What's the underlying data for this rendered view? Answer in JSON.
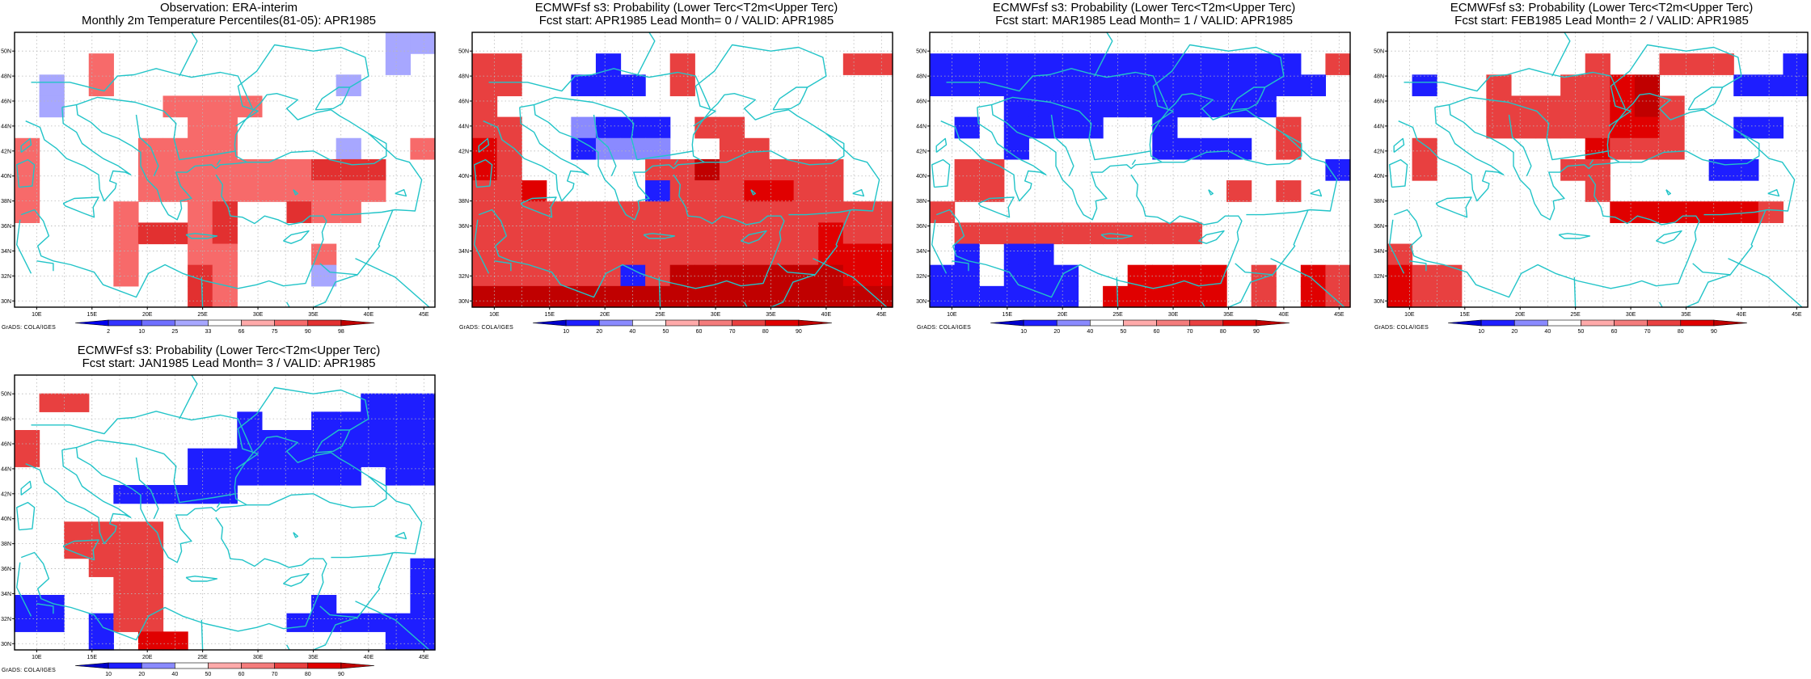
{
  "credit_text": "GrADS: COLA/IGES",
  "colors": {
    "frame": "#000000",
    "coast": "#22c4c8",
    "grid": "#b8b8b8"
  },
  "lat_labels": [
    "50N",
    "48N",
    "46N",
    "44N",
    "42N",
    "40N",
    "38N",
    "36N",
    "34N",
    "32N",
    "30N"
  ],
  "lon_labels": [
    "10E",
    "15E",
    "20E",
    "25E",
    "30E",
    "35E",
    "40E",
    "45E"
  ],
  "panels": [
    {
      "title_line1": "Observation: ERA-interim",
      "title_line2": "Monthly 2m Temperature Percentiles(81-05): APR1985",
      "legend": {
        "labels": [
          "2",
          "10",
          "25",
          "33",
          "66",
          "75",
          "90",
          "98"
        ],
        "colors": [
          "#0000ee",
          "#3333ff",
          "#6f6fff",
          "#a7a7ff",
          "#ffffff",
          "#ffaaaa",
          "#f76a6a",
          "#e23030",
          "#c00000"
        ]
      },
      "cells": [
        [
          0,
          0,
          0,
          0,
          0,
          0,
          0,
          0,
          0,
          0,
          0,
          0,
          0,
          0,
          0,
          -1,
          -1
        ],
        [
          0,
          0,
          0,
          2,
          0,
          0,
          0,
          0,
          0,
          0,
          0,
          0,
          0,
          0,
          0,
          -1,
          0
        ],
        [
          0,
          -1,
          0,
          2,
          0,
          0,
          0,
          0,
          0,
          0,
          0,
          0,
          0,
          -1,
          0,
          0,
          0
        ],
        [
          0,
          -1,
          0,
          0,
          0,
          0,
          2,
          2,
          2,
          2,
          0,
          0,
          0,
          0,
          0,
          0,
          0
        ],
        [
          0,
          0,
          0,
          0,
          0,
          0,
          0,
          2,
          2,
          0,
          0,
          0,
          0,
          0,
          0,
          0,
          0
        ],
        [
          2,
          0,
          0,
          0,
          0,
          2,
          2,
          2,
          2,
          0,
          0,
          0,
          0,
          -1,
          0,
          0,
          2
        ],
        [
          2,
          0,
          0,
          0,
          0,
          2,
          2,
          2,
          2,
          2,
          2,
          2,
          3,
          3,
          3,
          0,
          0
        ],
        [
          2,
          0,
          0,
          0,
          0,
          2,
          2,
          2,
          2,
          2,
          2,
          2,
          2,
          2,
          2,
          0,
          0
        ],
        [
          2,
          0,
          0,
          0,
          2,
          0,
          0,
          2,
          3,
          0,
          0,
          3,
          2,
          2,
          0,
          0,
          0
        ],
        [
          0,
          0,
          0,
          0,
          2,
          3,
          3,
          2,
          3,
          0,
          0,
          0,
          0,
          0,
          0,
          0,
          0
        ],
        [
          0,
          0,
          0,
          0,
          2,
          0,
          0,
          2,
          2,
          0,
          0,
          0,
          2,
          0,
          0,
          0,
          0
        ],
        [
          0,
          0,
          0,
          0,
          2,
          0,
          0,
          3,
          2,
          0,
          0,
          0,
          -1,
          0,
          0,
          0,
          0
        ],
        [
          0,
          0,
          0,
          0,
          0,
          0,
          0,
          3,
          2,
          0,
          0,
          0,
          0,
          0,
          0,
          0,
          0
        ]
      ]
    },
    {
      "title_line1": "ECMWFsf s3: Probability (Lower Terc<T2m<Upper Terc)",
      "title_line2": "Fcst start: APR1985   Lead Month= 0 / VALID: APR1985",
      "legend": {
        "labels": [
          "10",
          "20",
          "40",
          "50",
          "60",
          "70",
          "80",
          "90"
        ],
        "colors": [
          "#0000cc",
          "#1e1eff",
          "#8a8aff",
          "#ffffff",
          "#ffaaaa",
          "#f47c7c",
          "#e84040",
          "#e00000",
          "#c00000"
        ]
      },
      "cells": [
        [
          0,
          0,
          0,
          0,
          0,
          0,
          0,
          0,
          0,
          0,
          0,
          0,
          0,
          0,
          0,
          0,
          0
        ],
        [
          2,
          2,
          0,
          0,
          0,
          -3,
          0,
          0,
          2,
          0,
          0,
          0,
          0,
          0,
          0,
          2,
          2
        ],
        [
          2,
          2,
          0,
          0,
          -3,
          -3,
          -3,
          0,
          2,
          0,
          0,
          0,
          0,
          0,
          0,
          0,
          0
        ],
        [
          2,
          0,
          0,
          0,
          0,
          0,
          0,
          0,
          0,
          0,
          0,
          0,
          0,
          0,
          0,
          0,
          0
        ],
        [
          2,
          2,
          0,
          0,
          -2,
          -3,
          -3,
          -3,
          0,
          2,
          2,
          0,
          0,
          0,
          0,
          0,
          0
        ],
        [
          3,
          2,
          0,
          0,
          -3,
          -2,
          -2,
          -2,
          0,
          0,
          2,
          2,
          0,
          0,
          0,
          0,
          0
        ],
        [
          3,
          2,
          0,
          0,
          0,
          0,
          0,
          2,
          2,
          5,
          2,
          2,
          2,
          2,
          2,
          0,
          0
        ],
        [
          2,
          2,
          3,
          0,
          0,
          0,
          0,
          -3,
          2,
          2,
          2,
          3,
          3,
          2,
          2,
          0,
          0
        ],
        [
          2,
          2,
          2,
          2,
          2,
          2,
          2,
          2,
          2,
          2,
          2,
          2,
          2,
          2,
          2,
          2,
          2
        ],
        [
          2,
          2,
          2,
          2,
          2,
          2,
          2,
          2,
          2,
          2,
          2,
          2,
          2,
          2,
          3,
          2,
          2
        ],
        [
          2,
          2,
          2,
          2,
          2,
          2,
          2,
          2,
          2,
          2,
          2,
          2,
          2,
          2,
          3,
          3,
          3
        ],
        [
          2,
          2,
          2,
          2,
          2,
          2,
          -3,
          2,
          5,
          5,
          5,
          5,
          6,
          5,
          5,
          3,
          3
        ],
        [
          5,
          5,
          5,
          5,
          5,
          5,
          5,
          5,
          5,
          5,
          6,
          6,
          6,
          6,
          5,
          5,
          5
        ]
      ]
    },
    {
      "title_line1": "ECMWFsf s3: Probability (Lower Terc<T2m<Upper Terc)",
      "title_line2": "Fcst start: MAR1985   Lead Month= 1 / VALID: APR1985",
      "legend": {
        "labels": [
          "10",
          "20",
          "40",
          "50",
          "60",
          "70",
          "80",
          "90"
        ],
        "colors": [
          "#0000cc",
          "#1e1eff",
          "#8a8aff",
          "#ffffff",
          "#ffaaaa",
          "#f47c7c",
          "#e84040",
          "#e00000",
          "#c00000"
        ]
      },
      "cells": [
        [
          0,
          0,
          0,
          0,
          0,
          0,
          0,
          0,
          0,
          0,
          0,
          0,
          0,
          0,
          0,
          0,
          0
        ],
        [
          -3,
          -3,
          -3,
          -3,
          -3,
          -3,
          -3,
          -3,
          -3,
          -3,
          -3,
          -3,
          -3,
          -3,
          -3,
          0,
          2
        ],
        [
          -3,
          -3,
          -3,
          -3,
          -3,
          -3,
          -3,
          -3,
          -3,
          -3,
          -3,
          -3,
          -3,
          -3,
          -3,
          -3,
          0
        ],
        [
          0,
          0,
          0,
          -3,
          -3,
          -3,
          -3,
          -3,
          -3,
          -3,
          -3,
          -3,
          -3,
          -3,
          0,
          0,
          0
        ],
        [
          0,
          -3,
          0,
          -3,
          -3,
          -3,
          -3,
          0,
          0,
          -3,
          0,
          0,
          0,
          0,
          2,
          0,
          0
        ],
        [
          0,
          0,
          0,
          -3,
          0,
          0,
          0,
          0,
          0,
          -3,
          -3,
          -3,
          -3,
          0,
          2,
          0,
          0
        ],
        [
          0,
          2,
          2,
          0,
          0,
          0,
          0,
          0,
          0,
          0,
          0,
          0,
          0,
          0,
          0,
          0,
          -3
        ],
        [
          0,
          2,
          2,
          0,
          0,
          0,
          0,
          0,
          0,
          0,
          0,
          0,
          2,
          0,
          2,
          0,
          0
        ],
        [
          2,
          0,
          0,
          0,
          0,
          0,
          0,
          0,
          0,
          0,
          0,
          0,
          0,
          0,
          0,
          0,
          0
        ],
        [
          0,
          2,
          2,
          2,
          2,
          2,
          2,
          2,
          2,
          2,
          2,
          0,
          0,
          0,
          0,
          0,
          0
        ],
        [
          0,
          -3,
          0,
          -3,
          -3,
          0,
          0,
          0,
          0,
          0,
          0,
          0,
          0,
          0,
          0,
          0,
          0
        ],
        [
          -3,
          -3,
          0,
          -3,
          -3,
          -3,
          0,
          0,
          3,
          3,
          3,
          3,
          0,
          2,
          0,
          3,
          2
        ],
        [
          -3,
          -3,
          -3,
          -3,
          -3,
          -3,
          0,
          3,
          3,
          3,
          3,
          3,
          0,
          2,
          0,
          3,
          2
        ]
      ]
    },
    {
      "title_line1": "ECMWFsf s3: Probability (Lower Terc<T2m<Upper Terc)",
      "title_line2": "Fcst start: FEB1985   Lead Month= 2 / VALID: APR1985",
      "legend": {
        "labels": [
          "10",
          "20",
          "40",
          "50",
          "60",
          "70",
          "80",
          "90"
        ],
        "colors": [
          "#0000cc",
          "#1e1eff",
          "#8a8aff",
          "#ffffff",
          "#ffaaaa",
          "#f47c7c",
          "#e84040",
          "#e00000",
          "#c00000"
        ]
      },
      "cells": [
        [
          0,
          0,
          0,
          0,
          0,
          0,
          0,
          0,
          0,
          0,
          0,
          0,
          0,
          0,
          0,
          0,
          0
        ],
        [
          0,
          0,
          0,
          0,
          0,
          0,
          0,
          0,
          2,
          0,
          0,
          2,
          2,
          2,
          0,
          0,
          -3
        ],
        [
          0,
          -3,
          0,
          0,
          2,
          0,
          0,
          2,
          2,
          3,
          5,
          0,
          0,
          0,
          -3,
          -3,
          -3
        ],
        [
          0,
          0,
          0,
          0,
          2,
          2,
          2,
          2,
          2,
          3,
          5,
          2,
          0,
          0,
          0,
          0,
          0
        ],
        [
          0,
          0,
          0,
          0,
          2,
          2,
          2,
          2,
          2,
          3,
          3,
          2,
          0,
          0,
          -3,
          -3,
          0
        ],
        [
          0,
          2,
          0,
          0,
          0,
          0,
          0,
          0,
          3,
          2,
          2,
          2,
          0,
          0,
          0,
          0,
          0
        ],
        [
          0,
          2,
          0,
          0,
          0,
          0,
          0,
          2,
          2,
          0,
          0,
          0,
          0,
          -3,
          -3,
          0,
          0
        ],
        [
          0,
          0,
          0,
          0,
          0,
          0,
          0,
          0,
          2,
          0,
          0,
          0,
          0,
          0,
          0,
          0,
          0
        ],
        [
          0,
          0,
          0,
          0,
          0,
          0,
          0,
          0,
          0,
          3,
          3,
          3,
          3,
          3,
          3,
          2,
          0
        ],
        [
          0,
          0,
          0,
          0,
          0,
          0,
          0,
          0,
          0,
          0,
          0,
          0,
          0,
          0,
          0,
          0,
          0
        ],
        [
          2,
          0,
          0,
          0,
          0,
          0,
          0,
          0,
          0,
          0,
          0,
          0,
          0,
          0,
          0,
          0,
          0
        ],
        [
          3,
          2,
          2,
          0,
          0,
          0,
          0,
          0,
          0,
          0,
          0,
          0,
          0,
          0,
          0,
          0,
          0
        ],
        [
          3,
          2,
          2,
          0,
          0,
          0,
          0,
          0,
          0,
          0,
          0,
          0,
          0,
          0,
          0,
          0,
          0
        ]
      ]
    },
    {
      "title_line1": "ECMWFsf s3: Probability (Lower Terc<T2m<Upper Terc)",
      "title_line2": "Fcst start: JAN1985   Lead Month= 3 / VALID: APR1985",
      "legend": {
        "labels": [
          "10",
          "20",
          "40",
          "50",
          "60",
          "70",
          "80",
          "90"
        ],
        "colors": [
          "#0000cc",
          "#1e1eff",
          "#8a8aff",
          "#ffffff",
          "#ffaaaa",
          "#f47c7c",
          "#e84040",
          "#e00000",
          "#c00000"
        ]
      },
      "cells": [
        [
          0,
          0,
          0,
          0,
          0,
          0,
          0,
          0,
          0,
          0,
          0,
          0,
          0,
          0,
          0,
          0,
          0
        ],
        [
          0,
          2,
          2,
          0,
          0,
          0,
          0,
          0,
          0,
          0,
          0,
          0,
          0,
          0,
          -3,
          -3,
          -3
        ],
        [
          0,
          0,
          0,
          0,
          0,
          0,
          0,
          0,
          0,
          -3,
          0,
          0,
          -3,
          -3,
          -3,
          -3,
          -3
        ],
        [
          2,
          0,
          0,
          0,
          0,
          0,
          0,
          0,
          0,
          -3,
          -3,
          -3,
          -3,
          -3,
          -3,
          -3,
          -3
        ],
        [
          2,
          0,
          0,
          0,
          0,
          0,
          0,
          -3,
          -3,
          -3,
          -3,
          -3,
          -3,
          -3,
          -3,
          -3,
          -3
        ],
        [
          0,
          0,
          0,
          0,
          0,
          0,
          0,
          -3,
          -3,
          -3,
          -3,
          -3,
          -3,
          -3,
          0,
          -3,
          -3
        ],
        [
          0,
          0,
          0,
          0,
          -3,
          -3,
          -3,
          -3,
          -3,
          0,
          0,
          0,
          0,
          0,
          0,
          0,
          0
        ],
        [
          0,
          0,
          0,
          0,
          0,
          0,
          0,
          0,
          0,
          0,
          0,
          0,
          0,
          0,
          0,
          0,
          0
        ],
        [
          0,
          0,
          2,
          2,
          2,
          2,
          0,
          0,
          0,
          0,
          0,
          0,
          0,
          0,
          0,
          0,
          0
        ],
        [
          0,
          0,
          2,
          2,
          2,
          2,
          0,
          0,
          0,
          0,
          0,
          0,
          0,
          0,
          0,
          0,
          0
        ],
        [
          0,
          0,
          0,
          2,
          2,
          2,
          0,
          0,
          0,
          0,
          0,
          0,
          0,
          0,
          0,
          0,
          -3
        ],
        [
          0,
          0,
          0,
          0,
          2,
          2,
          0,
          0,
          0,
          0,
          0,
          0,
          0,
          0,
          0,
          0,
          -3
        ],
        [
          -3,
          -3,
          0,
          0,
          2,
          2,
          0,
          0,
          0,
          0,
          0,
          0,
          -3,
          0,
          0,
          0,
          -3
        ],
        [
          -3,
          -3,
          0,
          -3,
          2,
          2,
          0,
          0,
          0,
          0,
          0,
          -3,
          -3,
          -3,
          -3,
          -3,
          -3
        ],
        [
          0,
          0,
          0,
          -3,
          0,
          3,
          3,
          0,
          0,
          0,
          0,
          0,
          0,
          0,
          0,
          -3,
          -3
        ]
      ]
    }
  ]
}
